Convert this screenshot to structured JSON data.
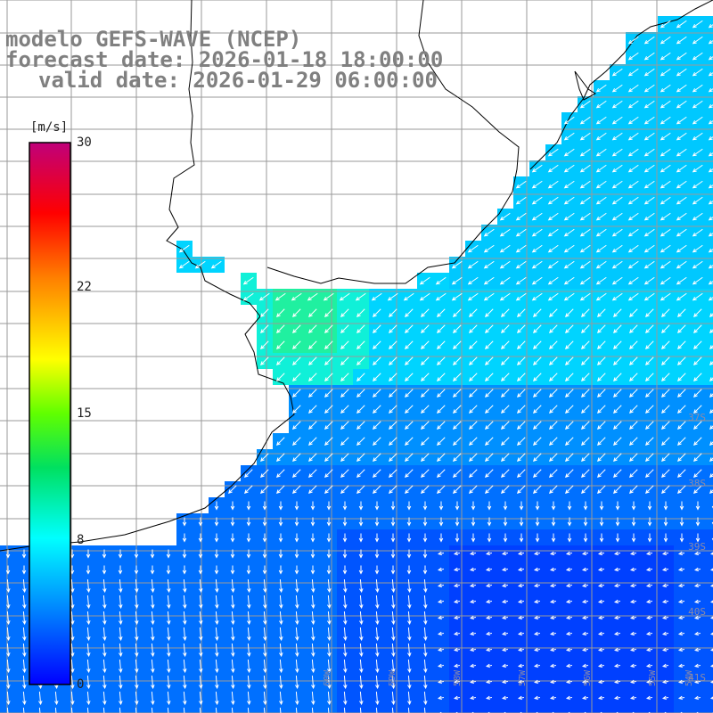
{
  "title": {
    "line1": "modelo GEFS-WAVE (NCEP)",
    "line2": "forecast date: 2026-01-18 18:00:00",
    "line3": "valid date: 2026-01-29 06:00:00"
  },
  "colorbar": {
    "unit": "[m/s]",
    "ticks": [
      {
        "value": 30,
        "label": "30"
      },
      {
        "value": 22,
        "label": "22"
      },
      {
        "value": 15,
        "label": "15"
      },
      {
        "value": 8,
        "label": "8"
      },
      {
        "value": 0,
        "label": "0"
      }
    ],
    "min": 0,
    "max": 30,
    "colors": [
      "#0000ff",
      "#00a0ff",
      "#00ffff",
      "#00ff00",
      "#ffff00",
      "#ff8000",
      "#ff0000",
      "#c00080"
    ]
  },
  "grid": {
    "lat_labels": [
      "37S",
      "38S",
      "39S",
      "40S",
      "41S"
    ],
    "lon_labels": [
      "60W",
      "59W",
      "58W",
      "57W",
      "56W",
      "55W",
      "54W"
    ]
  },
  "colors": {
    "land": "#ffffff",
    "coast": "#000000",
    "grid": "#9a9a9a",
    "arrow": "#ffffff",
    "title": "#808080"
  }
}
